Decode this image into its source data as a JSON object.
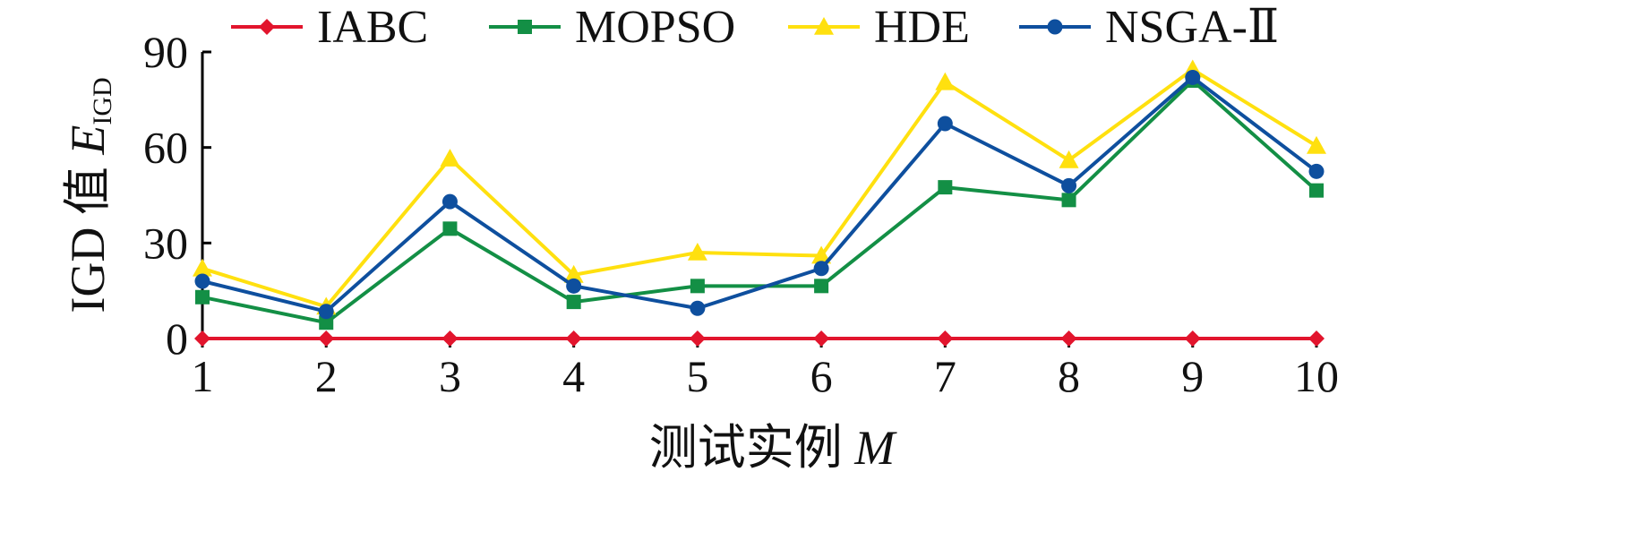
{
  "chart_data": {
    "type": "line",
    "title": "",
    "xlabel_main": "测试实例",
    "xlabel_var": "M",
    "ylabel_main": "IGD 值",
    "ylabel_var": "E",
    "ylabel_sub": "IGD",
    "x": [
      1,
      2,
      3,
      4,
      5,
      6,
      7,
      8,
      9,
      10
    ],
    "xticks": [
      "1",
      "2",
      "3",
      "4",
      "5",
      "6",
      "7",
      "8",
      "9",
      "10"
    ],
    "ylim": [
      0,
      90
    ],
    "yticks": [
      0,
      30,
      60,
      90
    ],
    "ytick_labels": [
      "0",
      "30",
      "60",
      "90"
    ],
    "legend_position": "top",
    "grid": false,
    "series": [
      {
        "name": "IABC",
        "color": "#e2152d",
        "marker": "diamond",
        "values": [
          0,
          0,
          0,
          0,
          0,
          0,
          0,
          0,
          0,
          0
        ]
      },
      {
        "name": "MOPSO",
        "color": "#138f45",
        "marker": "square",
        "values": [
          13,
          5,
          34.5,
          11.5,
          16.5,
          16.5,
          47.5,
          43.5,
          81,
          46.5
        ]
      },
      {
        "name": "HDE",
        "color": "#ffe00f",
        "marker": "triangle",
        "values": [
          22,
          10,
          56.5,
          20,
          27,
          26,
          80.5,
          56,
          84.5,
          60.5
        ]
      },
      {
        "name": "NSGA-Ⅱ",
        "color": "#0e4f9e",
        "marker": "circle",
        "values": [
          18,
          8.5,
          43,
          16.5,
          9.5,
          22,
          67.5,
          48,
          82,
          52.5
        ]
      }
    ]
  }
}
